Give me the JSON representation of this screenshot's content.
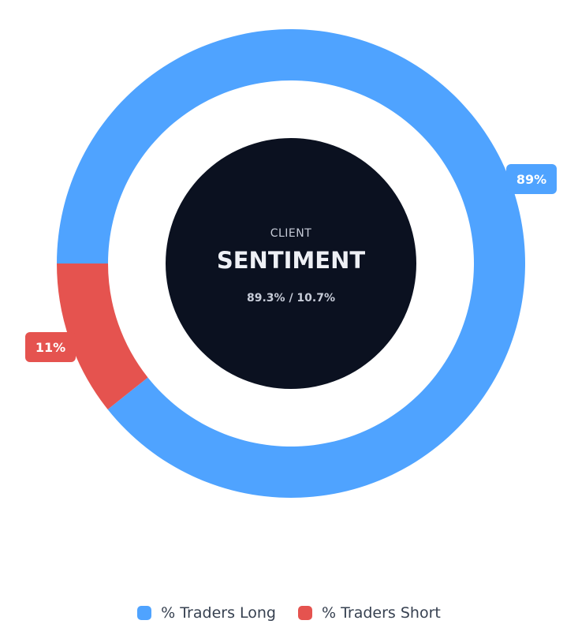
{
  "chart_data": {
    "type": "pie",
    "subtype": "donut",
    "center": {
      "line1": "CLIENT",
      "line2": "SENTIMENT",
      "line3": "89.3% / 10.7%"
    },
    "series": [
      {
        "name": "% Traders Long",
        "value": 89.3,
        "label": "89%",
        "color": "#4fa3ff"
      },
      {
        "name": "% Traders Short",
        "value": 10.7,
        "label": "11%",
        "color": "#e5534f"
      }
    ],
    "legend_position": "bottom-center"
  },
  "colors": {
    "center_fill": "#0b1120",
    "long": "#4fa3ff",
    "short": "#e5534f"
  }
}
